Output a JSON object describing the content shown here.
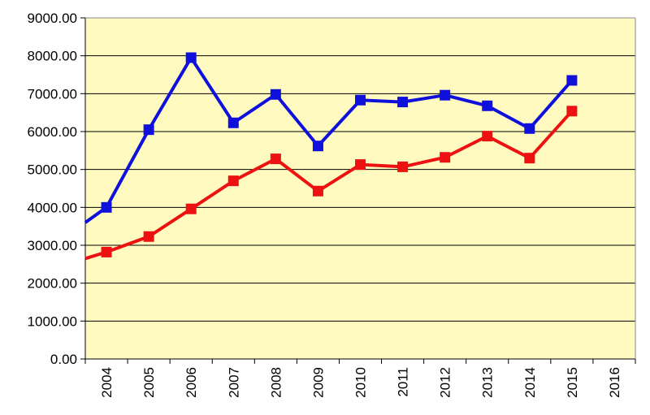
{
  "chart_data": {
    "type": "line",
    "categories": [
      "2004",
      "2005",
      "2006",
      "2007",
      "2008",
      "2009",
      "2010",
      "2011",
      "2012",
      "2013",
      "2014",
      "2015",
      "2016"
    ],
    "y_ticks": [
      "0.00",
      "1000.00",
      "2000.00",
      "3000.00",
      "4000.00",
      "5000.00",
      "6000.00",
      "7000.00",
      "8000.00",
      "9000.00"
    ],
    "ylim": [
      0,
      9000
    ],
    "grid": "horizontal",
    "background_color": "#FFFBC0",
    "series": [
      {
        "color": "#1010DD",
        "lead_in_value": 3600,
        "values": [
          4000,
          6050,
          7950,
          6230,
          6980,
          5620,
          6830,
          6780,
          6960,
          6680,
          6080,
          7350,
          null
        ]
      },
      {
        "color": "#EE1111",
        "lead_in_value": 2650,
        "values": [
          2820,
          3230,
          3960,
          4700,
          5280,
          4430,
          5130,
          5070,
          5320,
          5880,
          5300,
          6540,
          null
        ]
      }
    ]
  }
}
